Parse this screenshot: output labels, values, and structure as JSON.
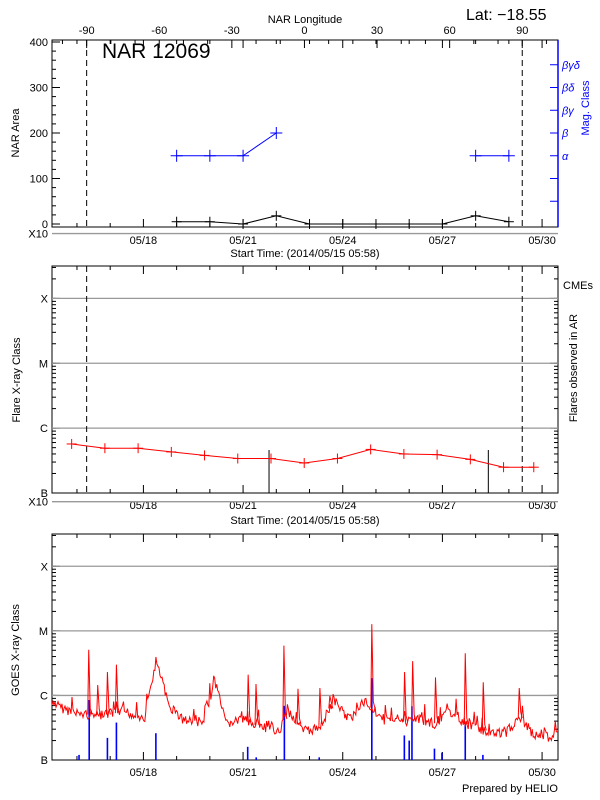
{
  "header": {
    "lat_label": "Lat: −18.55"
  },
  "footer": {
    "credit": "Prepared by HELIO"
  },
  "chart_data": [
    {
      "type": "line",
      "title": "NAR 12069",
      "top_axis": {
        "label": "NAR Longitude",
        "ticks": [
          -90,
          -60,
          -30,
          0,
          30,
          60,
          90
        ]
      },
      "limb_crossings": [
        "05/16 07:00",
        "05/29 09:40"
      ],
      "xlabel": "Start Time: (2014/05/15 05:58)",
      "xlim": [
        "05/15 05:58",
        "05/30 11:30"
      ],
      "x_ticks": [
        "05/18",
        "05/21",
        "05/24",
        "05/27",
        "05/30"
      ],
      "ylabel": "NAR Area",
      "ylim": [
        0,
        400
      ],
      "y_ticks": [
        0,
        100,
        200,
        300,
        400
      ],
      "y2label": "Mag. Class",
      "y2_color": "#0000ff",
      "y2_ticks": [
        {
          "label": "α",
          "value": 150
        },
        {
          "label": "β",
          "value": 200
        },
        {
          "label": "βγ",
          "value": 250
        },
        {
          "label": "βδ",
          "value": 300
        },
        {
          "label": "βγδ",
          "value": 350
        }
      ],
      "area": {
        "color": "#000000",
        "points": [
          {
            "t": "05/19 00:00",
            "v": 5
          },
          {
            "t": "05/20 00:00",
            "v": 5
          },
          {
            "t": "05/21 00:00",
            "v": 0
          },
          {
            "t": "05/22 00:00",
            "v": 18
          },
          {
            "t": "05/23 00:00",
            "v": 0
          },
          {
            "t": "05/24 00:00",
            "v": 0
          },
          {
            "t": "05/25 00:00",
            "v": 0
          },
          {
            "t": "05/26 00:00",
            "v": 0
          },
          {
            "t": "05/27 00:00",
            "v": 0
          },
          {
            "t": "05/28 00:00",
            "v": 18
          },
          {
            "t": "05/29 00:00",
            "v": 5
          }
        ]
      },
      "mag_class": {
        "color": "#0000ff",
        "points": [
          {
            "t": "05/19 00:00",
            "class": "α"
          },
          {
            "t": "05/20 00:00",
            "class": "α"
          },
          {
            "t": "05/21 00:00",
            "class": "α"
          },
          {
            "t": "05/22 00:00",
            "class": "β"
          },
          {
            "t": "05/28 00:00",
            "class": "α"
          },
          {
            "t": "05/29 00:00",
            "class": "α"
          }
        ]
      }
    },
    {
      "type": "line",
      "xlabel": "Start Time: (2014/05/15 05:58)",
      "xlim": [
        "05/15 05:58",
        "05/30 11:30"
      ],
      "x_ticks": [
        "05/18",
        "05/21",
        "05/24",
        "05/27",
        "05/30"
      ],
      "ylabel": "Flare X-ray Class",
      "y2label": "Flares observed in AR",
      "legend": {
        "label": "CMEs",
        "color": "#ff0000",
        "placement": "top-right"
      },
      "scale": "log",
      "ylim": [
        1e-07,
        0.000316
      ],
      "y_ticks": [
        {
          "label": "B",
          "value": 1e-07
        },
        {
          "label": "C",
          "value": 1e-06
        },
        {
          "label": "M",
          "value": 1e-05
        },
        {
          "label": "X",
          "value": 0.0001
        },
        {
          "label": "X10",
          "value": 0.001
        }
      ],
      "grid": true,
      "limb_crossings": [
        "05/16 07:00",
        "05/29 09:40"
      ],
      "flares": {
        "color": "#ff0000",
        "points": [
          {
            "t": "05/15 20:10",
            "flux": 5.7e-07
          },
          {
            "t": "05/16 20:10",
            "flux": 4.9e-07
          },
          {
            "t": "05/17 20:10",
            "flux": 4.9e-07
          },
          {
            "t": "05/18 20:10",
            "flux": 4.3e-07
          },
          {
            "t": "05/19 20:10",
            "flux": 3.8e-07
          },
          {
            "t": "05/20 20:10",
            "flux": 3.4e-07
          },
          {
            "t": "05/21 20:10",
            "flux": 3.4e-07
          },
          {
            "t": "05/22 20:10",
            "flux": 2.9e-07
          },
          {
            "t": "05/23 20:10",
            "flux": 3.4e-07
          },
          {
            "t": "05/24 20:10",
            "flux": 4.7e-07
          },
          {
            "t": "05/25 20:10",
            "flux": 4e-07
          },
          {
            "t": "05/26 20:10",
            "flux": 3.9e-07
          },
          {
            "t": "05/27 20:10",
            "flux": 3.3e-07
          },
          {
            "t": "05/28 20:10",
            "flux": 2.5e-07
          },
          {
            "t": "05/29 18:00",
            "flux": 2.5e-07
          }
        ]
      },
      "vertical_markers": {
        "color": "#000000",
        "times": [
          "05/21 18:45",
          "05/28 09:10"
        ]
      }
    },
    {
      "type": "line",
      "x_ticks": [
        "05/18",
        "05/21",
        "05/24",
        "05/27",
        "05/30"
      ],
      "xlim": [
        "05/15 05:58",
        "05/30 11:30"
      ],
      "ylabel": "GOES X-ray Class",
      "scale": "log",
      "ylim": [
        1e-07,
        0.000316
      ],
      "y_ticks": [
        {
          "label": "B",
          "value": 1e-07
        },
        {
          "label": "C",
          "value": 1e-06
        },
        {
          "label": "M",
          "value": 1e-05
        },
        {
          "label": "X",
          "value": 0.0001
        },
        {
          "label": "X10",
          "value": 0.001
        }
      ],
      "grid": true,
      "long_channel": {
        "color": "#ff0000",
        "baseline": [
          {
            "t": "05/15 06:00",
            "flux": 7.1e-07
          },
          {
            "t": "05/16 01:30",
            "flux": 5.2e-07
          },
          {
            "t": "05/16 18:00",
            "flux": 4.9e-07
          },
          {
            "t": "05/17 11:00",
            "flux": 5.6e-07
          },
          {
            "t": "05/18 01:00",
            "flux": 4.2e-07
          },
          {
            "t": "05/18 09:00",
            "flux": 3.4e-06
          },
          {
            "t": "05/18 12:00",
            "flux": 2.2e-06
          },
          {
            "t": "05/18 18:00",
            "flux": 7.1e-07
          },
          {
            "t": "05/19 05:00",
            "flux": 4.2e-07
          },
          {
            "t": "05/19 19:00",
            "flux": 3.6e-07
          },
          {
            "t": "05/20 03:30",
            "flux": 1.75e-06
          },
          {
            "t": "05/20 11:30",
            "flux": 3.6e-07
          },
          {
            "t": "05/20 23:00",
            "flux": 4.2e-07
          },
          {
            "t": "05/21 15:30",
            "flux": 3.1e-07
          },
          {
            "t": "05/22 02:40",
            "flux": 2.9e-07
          },
          {
            "t": "05/22 08:00",
            "flux": 6.1e-07
          },
          {
            "t": "05/22 19:30",
            "flux": 2.7e-07
          },
          {
            "t": "05/23 06:30",
            "flux": 3.1e-07
          },
          {
            "t": "05/23 17:45",
            "flux": 8.2e-07
          },
          {
            "t": "05/24 05:00",
            "flux": 4.2e-07
          },
          {
            "t": "05/24 16:00",
            "flux": 8.2e-07
          },
          {
            "t": "05/25 06:00",
            "flux": 4.2e-07
          },
          {
            "t": "05/25 20:00",
            "flux": 3.9e-07
          },
          {
            "t": "05/26 07:00",
            "flux": 4.2e-07
          },
          {
            "t": "05/26 18:15",
            "flux": 3.6e-07
          },
          {
            "t": "05/27 05:30",
            "flux": 5.6e-07
          },
          {
            "t": "05/27 16:30",
            "flux": 3.6e-07
          },
          {
            "t": "05/28 09:00",
            "flux": 2.7e-07
          },
          {
            "t": "05/28 20:40",
            "flux": 2.5e-07
          },
          {
            "t": "05/29 07:40",
            "flux": 4.5e-07
          },
          {
            "t": "05/29 19:00",
            "flux": 2.3e-07
          },
          {
            "t": "05/30 06:00",
            "flux": 2.3e-07
          },
          {
            "t": "05/30 11:00",
            "flux": 2.7e-07
          }
        ],
        "peaks": [
          {
            "t": "05/16 08:30",
            "flux": 5.1e-06
          },
          {
            "t": "05/16 15:00",
            "flux": 1.45e-06
          },
          {
            "t": "05/16 22:00",
            "flux": 2.3e-06
          },
          {
            "t": "05/17 04:30",
            "flux": 3e-06
          },
          {
            "t": "05/21 03:40",
            "flux": 2.1e-06
          },
          {
            "t": "05/21 09:20",
            "flux": 1.5e-06
          },
          {
            "t": "05/22 05:30",
            "flux": 5.9e-06
          },
          {
            "t": "05/22 15:40",
            "flux": 1.27e-06
          },
          {
            "t": "05/23 07:30",
            "flux": 1.3e-06
          },
          {
            "t": "05/23 14:40",
            "flux": 9.8e-07
          },
          {
            "t": "05/24 21:00",
            "flux": 1.27e-05
          },
          {
            "t": "05/25 20:40",
            "flux": 2.3e-06
          },
          {
            "t": "05/26 02:30",
            "flux": 3.4e-06
          },
          {
            "t": "05/26 19:00",
            "flux": 1.9e-06
          },
          {
            "t": "05/27 16:30",
            "flux": 4.5e-06
          },
          {
            "t": "05/28 05:30",
            "flux": 1.6e-06
          },
          {
            "t": "05/29 07:30",
            "flux": 1.3e-06
          }
        ]
      },
      "short_channel": {
        "color": "#0000ff",
        "bars": [
          {
            "t": "05/16 01:30",
            "flux": 1.2e-07
          },
          {
            "t": "05/16 08:50",
            "flux": 8.5e-07
          },
          {
            "t": "05/16 22:00",
            "flux": 2.2e-07
          },
          {
            "t": "05/17 04:30",
            "flux": 3.8e-07
          },
          {
            "t": "05/18 09:00",
            "flux": 2.6e-07
          },
          {
            "t": "05/21 03:20",
            "flux": 1.6e-07
          },
          {
            "t": "05/21 09:30",
            "flux": 1.1e-07
          },
          {
            "t": "05/22 05:50",
            "flux": 6.9e-07
          },
          {
            "t": "05/23 07:00",
            "flux": 1.1e-07
          },
          {
            "t": "05/24 21:00",
            "flux": 1.85e-06
          },
          {
            "t": "05/25 20:30",
            "flux": 2.4e-07
          },
          {
            "t": "05/26 00:00",
            "flux": 2e-07
          },
          {
            "t": "05/26 02:00",
            "flux": 6.8e-07
          },
          {
            "t": "05/26 18:15",
            "flux": 1.5e-07
          },
          {
            "t": "05/26 23:40",
            "flux": 1.3e-07
          },
          {
            "t": "05/27 16:30",
            "flux": 3.8e-07
          },
          {
            "t": "05/28 05:15",
            "flux": 1.2e-07
          }
        ]
      }
    }
  ]
}
